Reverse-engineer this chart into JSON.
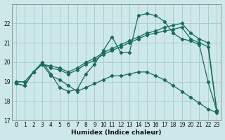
{
  "xlabel": "Humidex (Indice chaleur)",
  "bg_color": "#cde8e8",
  "grid_color": "#aacece",
  "line_color": "#1a6b5a",
  "ylim": [
    17,
    23
  ],
  "xlim": [
    -0.5,
    23.5
  ],
  "yticks": [
    17,
    18,
    19,
    20,
    21,
    22
  ],
  "xticks": [
    0,
    1,
    2,
    3,
    4,
    5,
    6,
    7,
    8,
    9,
    10,
    11,
    12,
    13,
    14,
    15,
    16,
    17,
    18,
    19,
    20,
    21,
    22,
    23
  ],
  "series": [
    {
      "x": [
        0,
        1,
        2,
        3,
        4,
        5,
        6,
        7,
        8,
        9,
        10,
        11,
        12,
        13,
        14,
        15,
        16,
        17,
        18,
        19,
        20,
        21,
        22,
        23
      ],
      "y": [
        18.9,
        18.8,
        19.5,
        20.0,
        19.4,
        18.7,
        18.5,
        18.6,
        19.4,
        19.9,
        20.6,
        21.3,
        20.5,
        20.5,
        22.4,
        22.5,
        22.4,
        22.1,
        21.5,
        21.2,
        21.1,
        20.9,
        19.0,
        17.5
      ]
    },
    {
      "x": [
        0,
        1,
        2,
        3,
        4,
        5,
        6,
        7,
        8,
        9,
        10,
        11,
        12,
        13,
        14,
        15,
        16,
        17,
        18,
        19,
        20,
        21,
        22,
        23
      ],
      "y": [
        19.0,
        19.0,
        19.5,
        19.9,
        19.8,
        19.7,
        19.5,
        19.7,
        20.0,
        20.2,
        20.5,
        20.7,
        20.9,
        21.1,
        21.3,
        21.5,
        21.6,
        21.8,
        21.9,
        22.0,
        21.5,
        21.2,
        21.0,
        17.5
      ]
    },
    {
      "x": [
        0,
        1,
        2,
        3,
        4,
        5,
        6,
        7,
        8,
        9,
        10,
        11,
        12,
        13,
        14,
        15,
        16,
        17,
        18,
        19,
        20,
        21,
        22,
        23
      ],
      "y": [
        19.0,
        19.0,
        19.5,
        19.9,
        19.7,
        19.6,
        19.4,
        19.6,
        19.9,
        20.1,
        20.4,
        20.6,
        20.8,
        21.0,
        21.2,
        21.4,
        21.5,
        21.6,
        21.7,
        21.8,
        21.2,
        21.0,
        20.8,
        17.5
      ]
    },
    {
      "x": [
        0,
        1,
        2,
        3,
        4,
        5,
        6,
        7,
        8,
        9,
        10,
        11,
        12,
        13,
        14,
        15,
        16,
        17,
        18,
        19,
        20,
        21,
        22,
        23
      ],
      "y": [
        18.9,
        18.8,
        19.5,
        19.9,
        19.3,
        19.1,
        18.8,
        18.5,
        18.7,
        18.9,
        19.1,
        19.3,
        19.3,
        19.4,
        19.5,
        19.5,
        19.3,
        19.1,
        18.8,
        18.5,
        18.2,
        17.9,
        17.6,
        17.4
      ]
    }
  ]
}
